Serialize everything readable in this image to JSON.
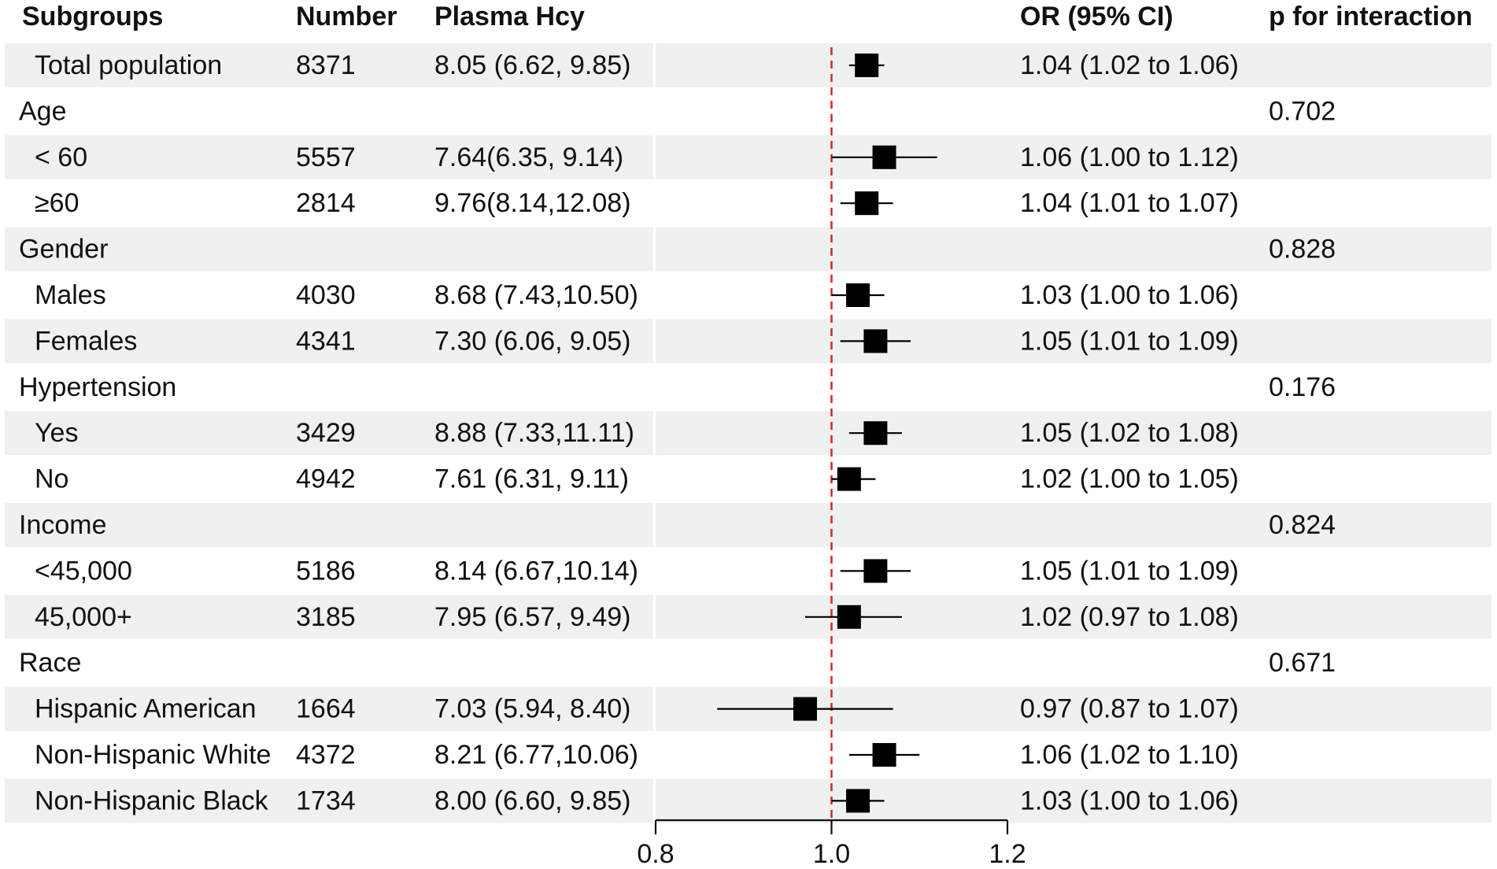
{
  "chart_data": {
    "type": "forest",
    "headers": {
      "subgroup": "Subgroups",
      "number": "Number",
      "hcy": "Plasma Hcy",
      "or": "OR (95% CI)",
      "p": "p for interaction"
    },
    "rows": [
      {
        "kind": "item",
        "label": "Total population",
        "indent": true,
        "number": "8371",
        "hcy": "8.05 (6.62, 9.85)",
        "or_text": "1.04 (1.02 to 1.06)",
        "or": 1.04,
        "lo": 1.02,
        "hi": 1.06
      },
      {
        "kind": "group",
        "label": "Age",
        "p": "0.702"
      },
      {
        "kind": "item",
        "label": "< 60",
        "indent": true,
        "number": "5557",
        "hcy": "7.64(6.35, 9.14)",
        "or_text": "1.06 (1.00 to 1.12)",
        "or": 1.06,
        "lo": 1.0,
        "hi": 1.12
      },
      {
        "kind": "item",
        "label": "≥60",
        "indent": true,
        "number": "2814",
        "hcy": "9.76(8.14,12.08)",
        "or_text": "1.04 (1.01 to 1.07)",
        "or": 1.04,
        "lo": 1.01,
        "hi": 1.07
      },
      {
        "kind": "group",
        "label": "Gender",
        "p": "0.828"
      },
      {
        "kind": "item",
        "label": "Males",
        "indent": true,
        "number": "4030",
        "hcy": "8.68 (7.43,10.50)",
        "or_text": "1.03 (1.00 to 1.06)",
        "or": 1.03,
        "lo": 1.0,
        "hi": 1.06
      },
      {
        "kind": "item",
        "label": "Females",
        "indent": true,
        "number": "4341",
        "hcy": "7.30 (6.06, 9.05)",
        "or_text": "1.05 (1.01 to 1.09)",
        "or": 1.05,
        "lo": 1.01,
        "hi": 1.09
      },
      {
        "kind": "group",
        "label": "Hypertension",
        "p": "0.176"
      },
      {
        "kind": "item",
        "label": "Yes",
        "indent": true,
        "number": "3429",
        "hcy": "8.88 (7.33,11.11)",
        "or_text": "1.05 (1.02 to 1.08)",
        "or": 1.05,
        "lo": 1.02,
        "hi": 1.08
      },
      {
        "kind": "item",
        "label": "No",
        "indent": true,
        "number": "4942",
        "hcy": "7.61 (6.31, 9.11)",
        "or_text": "1.02 (1.00 to 1.05)",
        "or": 1.02,
        "lo": 1.0,
        "hi": 1.05
      },
      {
        "kind": "group",
        "label": "Income",
        "p": "0.824"
      },
      {
        "kind": "item",
        "label": "<45,000",
        "indent": true,
        "number": "5186",
        "hcy": "8.14 (6.67,10.14)",
        "or_text": "1.05 (1.01 to 1.09)",
        "or": 1.05,
        "lo": 1.01,
        "hi": 1.09
      },
      {
        "kind": "item",
        "label": "45,000+",
        "indent": true,
        "number": "3185",
        "hcy": "7.95 (6.57, 9.49)",
        "or_text": "1.02 (0.97 to 1.08)",
        "or": 1.02,
        "lo": 0.97,
        "hi": 1.08
      },
      {
        "kind": "group",
        "label": "Race",
        "p": "0.671"
      },
      {
        "kind": "item",
        "label": "Hispanic American",
        "indent": true,
        "number": "1664",
        "hcy": "7.03 (5.94, 8.40)",
        "or_text": "0.97 (0.87 to 1.07)",
        "or": 0.97,
        "lo": 0.87,
        "hi": 1.07
      },
      {
        "kind": "item",
        "label": "Non-Hispanic White",
        "indent": true,
        "number": "4372",
        "hcy": "8.21 (6.77,10.06)",
        "or_text": "1.06 (1.02 to 1.10)",
        "or": 1.06,
        "lo": 1.02,
        "hi": 1.1
      },
      {
        "kind": "item",
        "label": "Non-Hispanic Black",
        "indent": true,
        "number": "1734",
        "hcy": "8.00 (6.60, 9.85)",
        "or_text": "1.03 (1.00 to 1.06)",
        "or": 1.03,
        "lo": 1.0,
        "hi": 1.06
      }
    ],
    "x_axis": {
      "min": 0.8,
      "max": 1.2,
      "ticks": [
        0.8,
        1.0,
        1.2
      ],
      "tick_labels": [
        "0.8",
        "1.0",
        "1.2"
      ]
    },
    "reference_line": 1.0,
    "colors": {
      "band": "#eef1f0",
      "reference": "#e02020",
      "marker": "#000000"
    }
  }
}
